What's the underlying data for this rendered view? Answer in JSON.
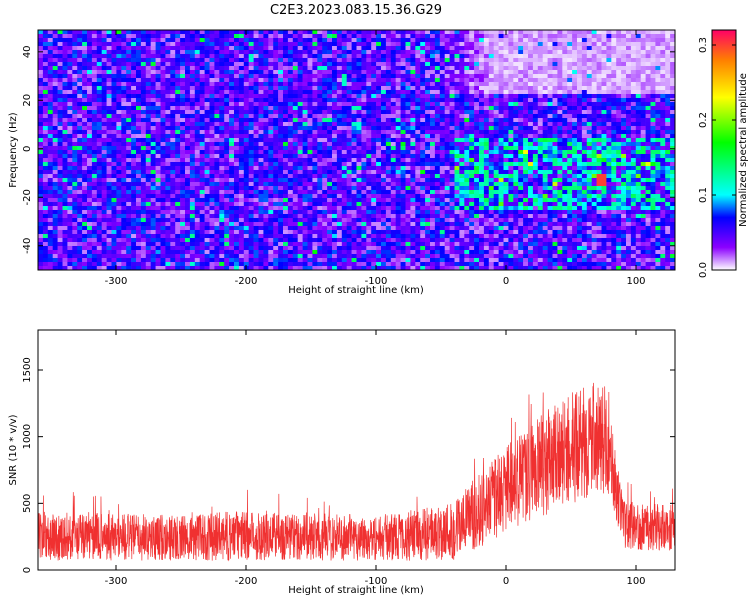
{
  "title": "C2E3.2023.083.15.36.G29",
  "chart_data": [
    {
      "type": "heatmap",
      "xlabel": "Height of straight line (km)",
      "ylabel": "Frequency (Hz)",
      "xlim": [
        -360,
        130
      ],
      "ylim": [
        -50,
        49
      ],
      "xticks": [
        -300,
        -200,
        -100,
        0,
        100
      ],
      "xtick_labels": [
        "-300",
        "-200",
        "-100",
        "0",
        "100"
      ],
      "yticks": [
        -40,
        -20,
        0,
        20,
        40
      ],
      "ytick_labels": [
        "-40",
        "-20",
        "0",
        "20",
        "40"
      ],
      "colorbar": {
        "label": "Normalized spectral amplitude",
        "range": [
          0,
          0.32
        ],
        "ticks": [
          0.0,
          0.1,
          0.2,
          0.3
        ],
        "tick_labels": [
          "0.0",
          "0.1",
          "0.2",
          "0.3"
        ],
        "stops": [
          {
            "v": 0.0,
            "color": "#ffffff"
          },
          {
            "v": 0.03,
            "color": "#8b00ff"
          },
          {
            "v": 0.07,
            "color": "#0000ff"
          },
          {
            "v": 0.1,
            "color": "#00ffff"
          },
          {
            "v": 0.17,
            "color": "#00ff00"
          },
          {
            "v": 0.23,
            "color": "#ffff00"
          },
          {
            "v": 0.28,
            "color": "#ff7f00"
          },
          {
            "v": 0.32,
            "color": "#ff0066"
          }
        ]
      },
      "features": {
        "background_mean": 0.05,
        "quiet_region": {
          "x": [
            -50,
            130
          ],
          "y": [
            22,
            49
          ],
          "mean": 0.012
        },
        "signal_band": {
          "x": [
            -40,
            130
          ],
          "y": [
            -25,
            5
          ],
          "mean": 0.09
        },
        "peak": {
          "x": 72,
          "y": -13,
          "value": 0.3
        }
      },
      "grid": false
    },
    {
      "type": "line",
      "xlabel": "Height of straight line (km)",
      "ylabel": "SNR (10 * v/v)",
      "xlim": [
        -360,
        130
      ],
      "ylim": [
        0,
        1800
      ],
      "xticks": [
        -300,
        -200,
        -100,
        0,
        100
      ],
      "xtick_labels": [
        "-300",
        "-200",
        "-100",
        "0",
        "100"
      ],
      "yticks": [
        0,
        500,
        1000,
        1500
      ],
      "ytick_labels": [
        "0",
        "500",
        "1000",
        "1500"
      ],
      "series_color": "#f03030",
      "envelope": {
        "x": [
          -360,
          -300,
          -250,
          -200,
          -150,
          -100,
          -60,
          -40,
          -30,
          -20,
          0,
          20,
          40,
          60,
          70,
          80,
          85,
          90,
          100,
          130
        ],
        "mean": [
          250,
          250,
          240,
          260,
          250,
          240,
          270,
          300,
          380,
          450,
          600,
          750,
          850,
          950,
          1000,
          950,
          600,
          350,
          330,
          320
        ],
        "noise": [
          180,
          180,
          170,
          190,
          180,
          170,
          200,
          230,
          250,
          280,
          330,
          380,
          400,
          420,
          420,
          400,
          250,
          180,
          180,
          180
        ]
      },
      "grid": false
    }
  ]
}
